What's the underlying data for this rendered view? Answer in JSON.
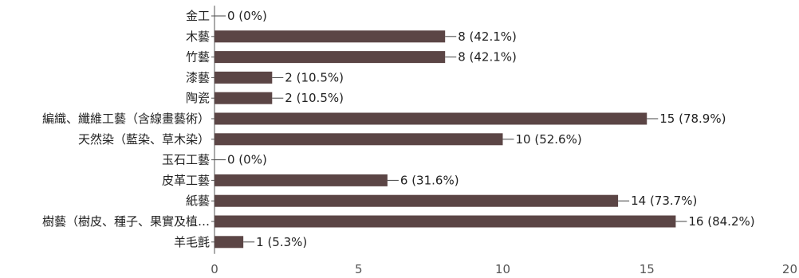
{
  "chart_data": {
    "type": "bar",
    "orientation": "horizontal",
    "categories": [
      "金工",
      "木藝",
      "竹藝",
      "漆藝",
      "陶瓷",
      "編織、纖維工藝（含線畫藝術）",
      "天然染（藍染、草木染）",
      "玉石工藝",
      "皮革工藝",
      "紙藝",
      "樹藝（樹皮、種子、果實及植…",
      "羊毛氈"
    ],
    "values": [
      0,
      8,
      8,
      2,
      2,
      15,
      10,
      0,
      6,
      14,
      16,
      1
    ],
    "value_labels": [
      "0 (0%)",
      "8 (42.1%)",
      "8 (42.1%)",
      "2 (10.5%)",
      "2 (10.5%)",
      "15 (78.9%)",
      "10 (52.6%)",
      "0 (0%)",
      "6 (31.6%)",
      "14 (73.7%)",
      "16 (84.2%)",
      "1 (5.3%)"
    ],
    "x_ticks": [
      0,
      5,
      10,
      15,
      20
    ],
    "xlim": [
      0,
      20
    ],
    "title": "",
    "xlabel": "",
    "ylabel": "",
    "grid": false,
    "colors": {
      "bar": "#5b4545",
      "axis": "#555555",
      "leader": "#444444"
    }
  }
}
